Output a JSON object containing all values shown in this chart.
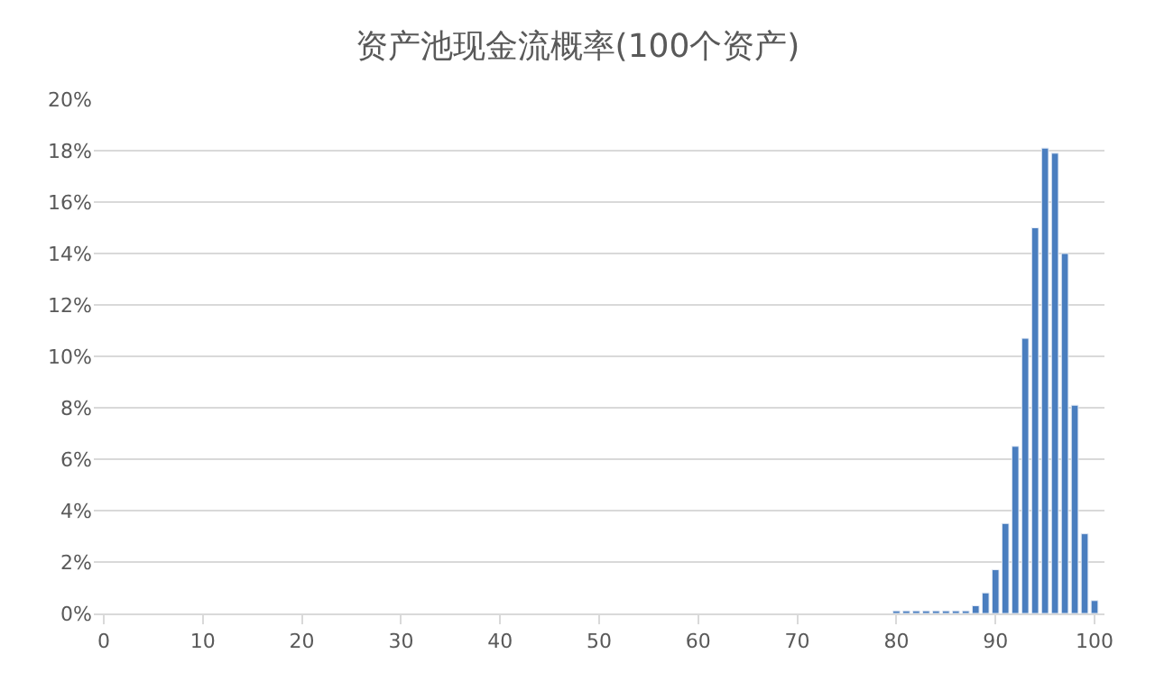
{
  "chart_data": {
    "type": "bar",
    "title": "资产池现金流概率(100个资产)",
    "x": [
      80,
      81,
      82,
      83,
      84,
      85,
      86,
      87,
      88,
      89,
      90,
      91,
      92,
      93,
      94,
      95,
      96,
      97,
      98,
      99,
      100
    ],
    "values": [
      0.1,
      0.1,
      0.1,
      0.1,
      0.1,
      0.1,
      0.1,
      0.1,
      0.3,
      0.8,
      1.7,
      3.5,
      6.5,
      10.7,
      15.0,
      18.1,
      17.9,
      14.0,
      8.1,
      3.1,
      0.5
    ],
    "color": "#4a7ebf",
    "xlim": [
      -1,
      101
    ],
    "xticks": [
      0,
      10,
      20,
      30,
      40,
      50,
      60,
      70,
      80,
      90,
      100
    ],
    "ylim": [
      0,
      20
    ],
    "yticks": [
      {
        "value": 0,
        "label": "0%"
      },
      {
        "value": 2,
        "label": "2%"
      },
      {
        "value": 4,
        "label": "4%"
      },
      {
        "value": 6,
        "label": "6%"
      },
      {
        "value": 8,
        "label": "8%"
      },
      {
        "value": 10,
        "label": "10%"
      },
      {
        "value": 12,
        "label": "12%"
      },
      {
        "value": 14,
        "label": "14%"
      },
      {
        "value": 16,
        "label": "16%"
      },
      {
        "value": 18,
        "label": "18%"
      },
      {
        "value": 20,
        "label": "20%"
      }
    ],
    "grid": "y"
  }
}
